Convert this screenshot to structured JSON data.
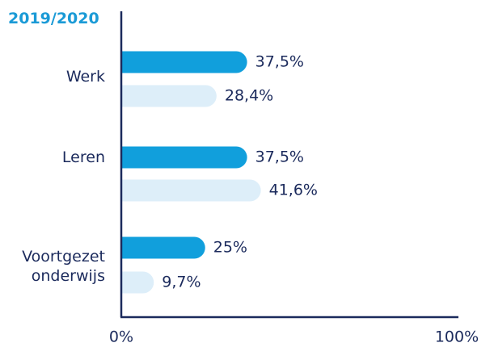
{
  "chart_data": {
    "type": "bar",
    "orientation": "horizontal",
    "title": "2019/2020",
    "categories": [
      "Werk",
      "Leren",
      "Voortgezet onderwijs"
    ],
    "series": [
      {
        "color": "#119fdc",
        "values": [
          37.5,
          37.5,
          25
        ],
        "value_labels": [
          "37,5%",
          "37,5%",
          "25%"
        ]
      },
      {
        "color": "#ddeef9",
        "values": [
          28.4,
          41.6,
          9.7
        ],
        "value_labels": [
          "28,4%",
          "41,6%",
          "9,7%"
        ]
      }
    ],
    "xlim": [
      0,
      100
    ],
    "xticks": [
      {
        "value": 0,
        "label": "0%"
      },
      {
        "value": 100,
        "label": "100%"
      }
    ]
  }
}
